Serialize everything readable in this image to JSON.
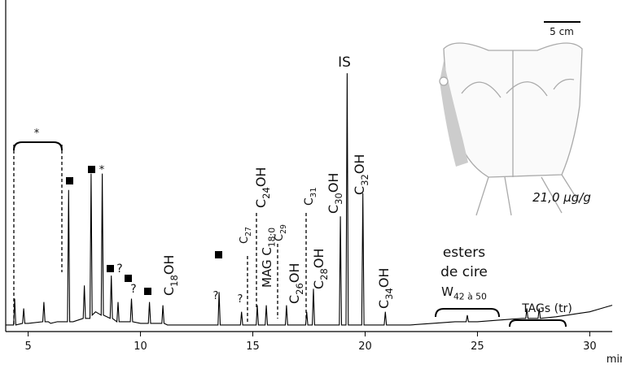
{
  "chart_data": {
    "type": "line",
    "x": [
      4.0,
      4.35,
      4.4,
      4.45,
      4.75,
      4.8,
      4.85,
      5.0,
      5.65,
      5.7,
      5.75,
      5.9,
      6.0,
      6.3,
      6.75,
      6.8,
      6.85,
      7.0,
      7.45,
      7.5,
      7.55,
      7.75,
      7.8,
      7.85,
      8.0,
      8.25,
      8.3,
      8.35,
      8.65,
      8.7,
      8.75,
      8.95,
      9.0,
      9.05,
      9.55,
      9.6,
      9.65,
      10.0,
      10.35,
      10.4,
      10.45,
      10.95,
      11.0,
      11.05,
      11.2,
      12.0,
      13.0,
      13.45,
      13.5,
      13.55,
      14.0,
      14.45,
      14.5,
      14.55,
      15.15,
      15.2,
      15.25,
      15.55,
      15.6,
      15.65,
      16.0,
      16.45,
      16.5,
      16.55,
      17.0,
      17.35,
      17.4,
      17.45,
      17.65,
      17.7,
      17.75,
      18.5,
      18.85,
      18.9,
      18.95,
      19.15,
      19.2,
      19.25,
      19.85,
      19.9,
      19.95,
      20.85,
      20.9,
      20.95,
      22.0,
      23.0,
      24.0,
      24.5,
      24.55,
      24.6,
      25.0,
      26.0,
      27.0,
      27.15,
      27.2,
      27.25,
      27.7,
      27.75,
      27.8,
      28.5,
      29.0,
      29.5,
      30.0,
      30.5,
      31.0
    ],
    "series": [
      {
        "color": "#000000",
        "values": [
          2,
          2,
          10,
          2,
          2.5,
          7,
          2.5,
          2.5,
          3,
          9,
          3,
          3,
          2.5,
          3,
          3,
          43,
          3,
          3,
          4,
          14,
          4,
          4,
          48,
          5,
          6,
          5,
          48,
          5,
          4,
          17,
          4,
          3,
          9,
          3,
          3,
          10,
          3,
          2.5,
          2.5,
          9,
          2.5,
          2.5,
          8,
          2.5,
          2,
          2,
          2,
          2,
          12,
          2,
          2,
          2,
          6,
          2,
          2,
          8,
          2,
          2,
          8,
          2,
          2,
          2,
          8,
          2,
          2,
          2,
          6,
          2,
          2,
          13,
          2,
          2,
          2,
          35,
          2,
          2,
          78.5,
          2,
          2,
          42,
          2,
          2,
          6,
          2,
          2,
          2.5,
          3,
          3,
          5,
          3,
          3,
          3.5,
          4,
          4,
          7,
          4,
          4,
          7,
          4,
          4.5,
          5,
          5.5,
          6,
          7,
          8
        ]
      }
    ],
    "xlim": [
      4,
      31
    ],
    "ylim": [
      0,
      100
    ],
    "xticks": [
      5,
      10,
      15,
      20,
      25,
      30
    ],
    "x_label": "min",
    "annotations": [
      {
        "segments": [
          "*"
        ]
      },
      {
        "segments": [
          "*"
        ]
      },
      {
        "segments": [
          "?"
        ]
      },
      {
        "segments": [
          "?"
        ]
      },
      {
        "segments": [
          "?"
        ]
      },
      {
        "segments": [
          "?"
        ]
      },
      {
        "segments": [
          "IS"
        ]
      },
      {
        "segments": [
          "C",
          "18",
          "OH"
        ]
      },
      {
        "segments": [
          "C",
          "27"
        ]
      },
      {
        "segments": [
          "C",
          "24",
          "OH"
        ]
      },
      {
        "segments": [
          "MAG C",
          "18:0"
        ]
      },
      {
        "segments": [
          "C",
          "29"
        ]
      },
      {
        "segments": [
          "C",
          "26",
          "OH"
        ]
      },
      {
        "segments": [
          "C",
          "31"
        ]
      },
      {
        "segments": [
          "C",
          "28",
          "OH"
        ]
      },
      {
        "segments": [
          "C",
          "30",
          "OH"
        ]
      },
      {
        "segments": [
          "C",
          "32",
          "OH"
        ]
      },
      {
        "segments": [
          "C",
          "34",
          "OH"
        ]
      },
      {
        "segments": [
          "esters"
        ]
      },
      {
        "segments": [
          "de cire"
        ]
      },
      {
        "segments": [
          "W",
          "42 à 50"
        ]
      },
      {
        "segments": [
          "TAGs (tr)"
        ]
      },
      {
        "segments": [
          "5 cm"
        ]
      },
      {
        "segments": [
          "21,0 µg/g"
        ]
      }
    ]
  }
}
